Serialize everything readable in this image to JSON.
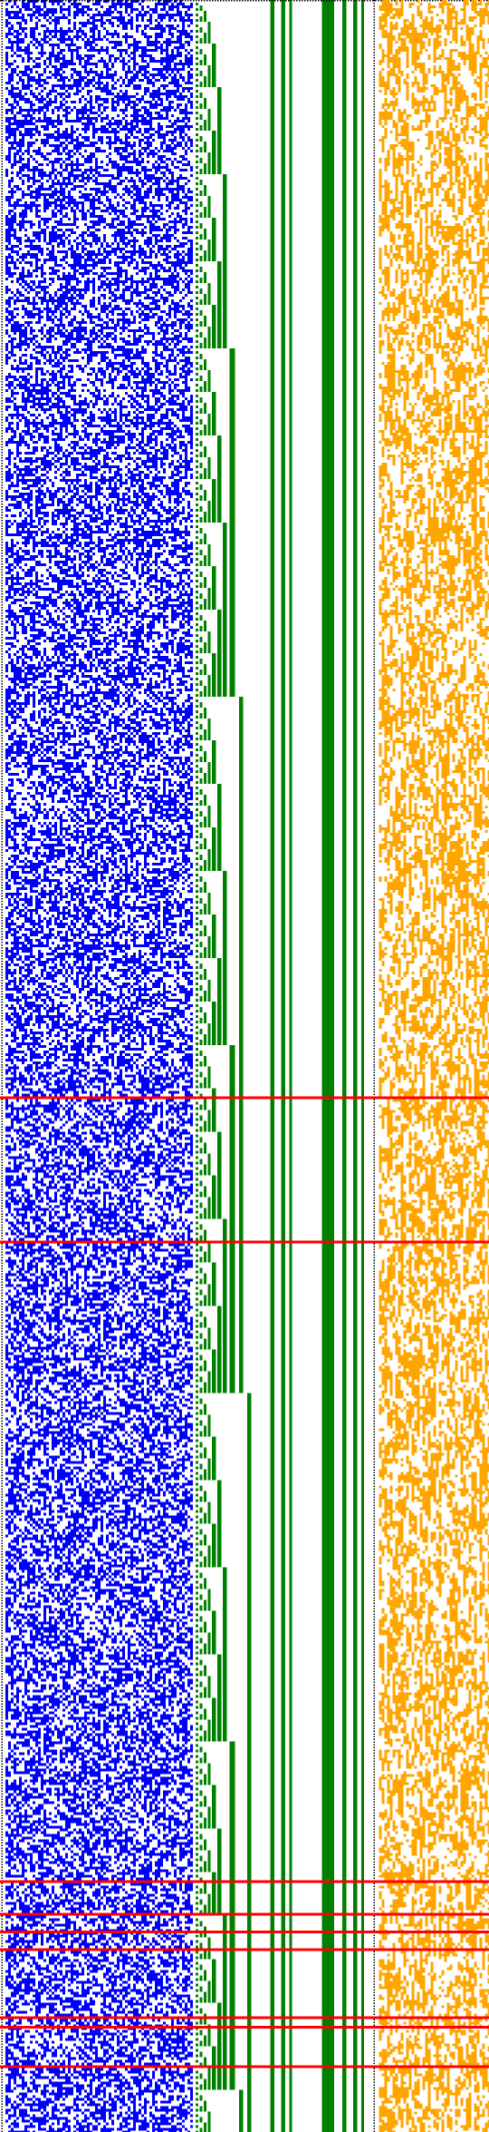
{
  "visualization": {
    "kind": "bit-pattern raster",
    "grid": {
      "columns": 360,
      "rows": 1567
    },
    "palette": {
      "background": "#ffffff",
      "blue": "#0000ff",
      "green": "#008000",
      "orange": "#ffa500",
      "red": "#ff0000",
      "black": "#000000"
    },
    "marked_row_count": 14
  }
}
